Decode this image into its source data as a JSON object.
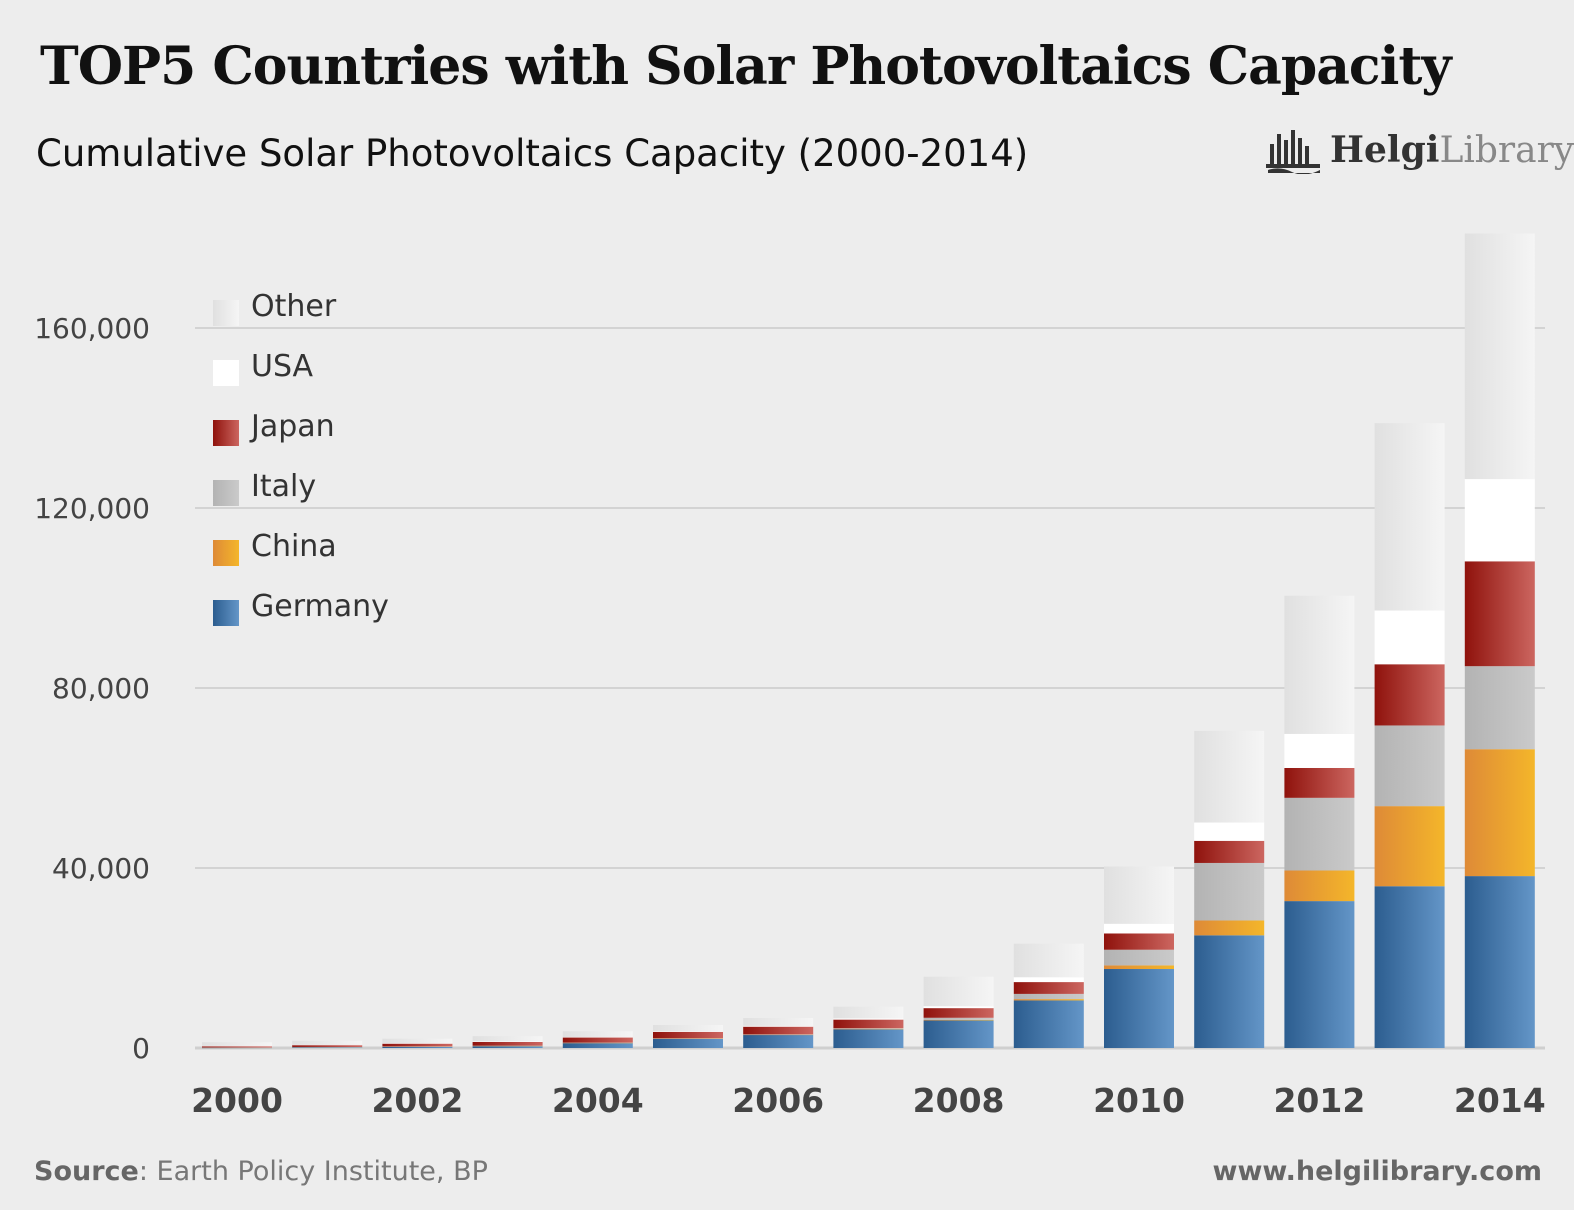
{
  "title": "TOP5 Countries with Solar Photovoltaics Capacity",
  "logo": {
    "part1": "Helgi",
    "part2": "Library"
  },
  "source": {
    "label": "Source",
    "text": ": Earth Policy Institute, BP"
  },
  "url": "www.helgilibrary.com",
  "chart_data": {
    "type": "bar",
    "stacked": true,
    "title": "Cumulative Solar Photovoltaics Capacity (2000-2014)",
    "xlabel": "",
    "ylabel": "",
    "ylim": [
      0,
      180000
    ],
    "yticks": [
      0,
      40000,
      80000,
      120000,
      160000
    ],
    "ytick_labels": [
      "0",
      "40,000",
      "80,000",
      "120,000",
      "160,000"
    ],
    "grid": true,
    "legend_position": "top-left",
    "categories": [
      "2000",
      "2001",
      "2002",
      "2003",
      "2004",
      "2005",
      "2006",
      "2007",
      "2008",
      "2009",
      "2010",
      "2011",
      "2012",
      "2013",
      "2014"
    ],
    "xtick_labels": [
      "2000",
      "",
      "2002",
      "",
      "2004",
      "",
      "2006",
      "",
      "2008",
      "",
      "2010",
      "",
      "2012",
      "",
      "2014"
    ],
    "series": [
      {
        "name": "Germany",
        "color": "#3a6ea5",
        "values": [
          76,
          186,
          296,
          435,
          1105,
          2056,
          2899,
          4170,
          6120,
          10566,
          17554,
          25039,
          32643,
          35948,
          38200
        ]
      },
      {
        "name": "China",
        "color": "#eea22a",
        "values": [
          19,
          24,
          42,
          52,
          62,
          70,
          80,
          100,
          140,
          300,
          800,
          3300,
          6800,
          17800,
          28199
        ]
      },
      {
        "name": "Italy",
        "color": "#bdbdbd",
        "values": [
          19,
          20,
          22,
          26,
          31,
          38,
          50,
          120,
          458,
          1157,
          3484,
          12783,
          16152,
          17928,
          18450
        ]
      },
      {
        "name": "Japan",
        "color": "#b0332c",
        "values": [
          330,
          453,
          637,
          860,
          1132,
          1422,
          1708,
          1919,
          2144,
          2627,
          3618,
          4914,
          6632,
          13599,
          23300
        ]
      },
      {
        "name": "USA",
        "color": "#ffffff",
        "values": [
          21,
          32,
          50,
          75,
          103,
          137,
          190,
          268,
          435,
          1082,
          2153,
          4071,
          7578,
          11942,
          18280
        ]
      },
      {
        "name": "Other",
        "color": "#e9e9e9",
        "values": [
          823,
          900,
          1022,
          1187,
          1290,
          1389,
          1733,
          2606,
          6547,
          7453,
          12727,
          20362,
          30699,
          41639,
          54571
        ]
      }
    ]
  }
}
